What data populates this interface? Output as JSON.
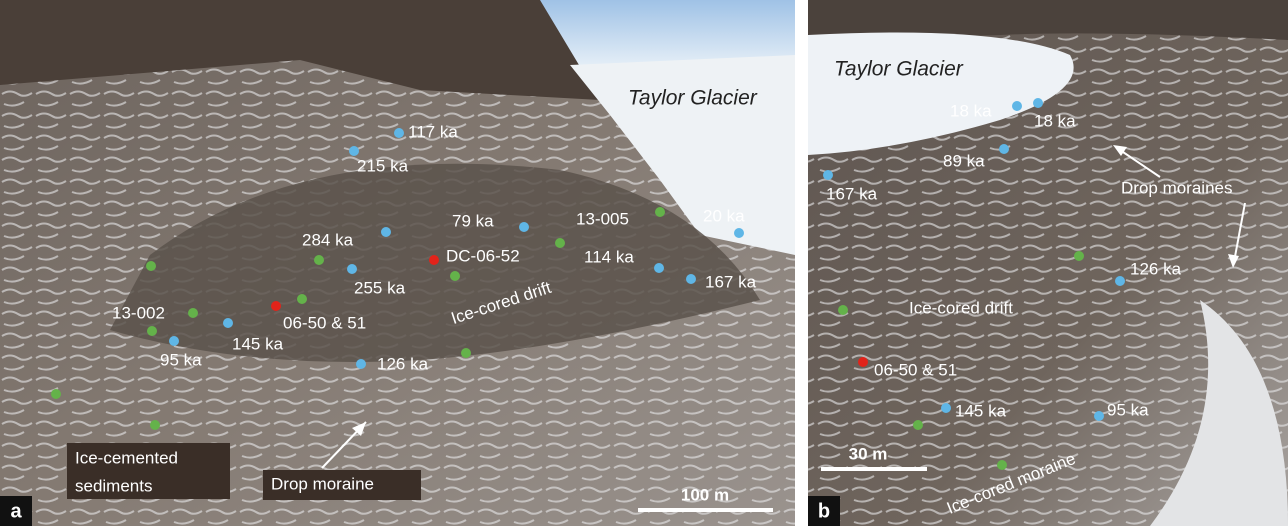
{
  "panel_a": {
    "letter": "a",
    "glacier": "Taylor Glacier",
    "scale": "100 m",
    "labels": [
      "117 ka",
      "215 ka",
      "79 ka",
      "13-005",
      "20 ka",
      "284 ka",
      "DC-06-52",
      "114 ka",
      "167 ka",
      "255 ka",
      "Ice-cored drift",
      "13-002",
      "06-50 & 51",
      "145 ka",
      "95 ka",
      "126 ka"
    ],
    "sediments": [
      "Ice-cemented",
      "sediments"
    ],
    "moraine": "Drop moraine"
  },
  "panel_b": {
    "letter": "b",
    "glacier": "Taylor Glacier",
    "scale": "30 m",
    "labels": [
      "18 ka",
      "18 ka",
      "89 ka",
      "167 ka",
      "Drop moraines",
      "126 ka",
      "Ice-cored drift",
      "06-50 & 51",
      "145 ka",
      "95 ka",
      "Ice-cored moraine"
    ]
  }
}
